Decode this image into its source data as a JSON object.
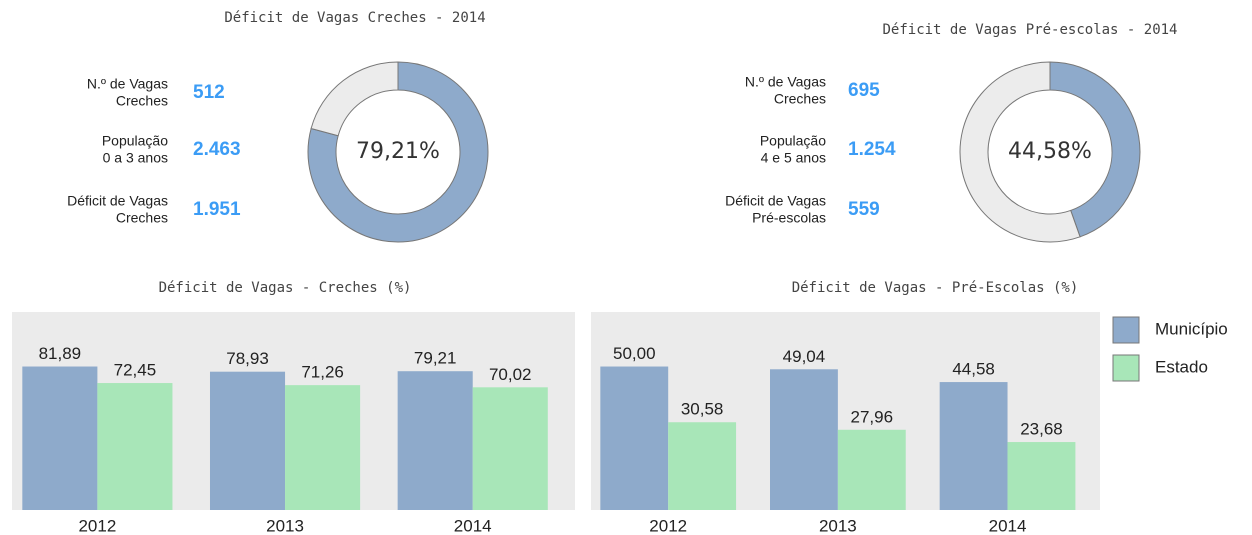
{
  "chart_data": [
    {
      "type": "pie",
      "title": "Déficit de Vagas Creches - 2014",
      "stats": [
        {
          "label": [
            "N.º de Vagas",
            "Creches"
          ],
          "value": 512
        },
        {
          "label": [
            "População",
            "0 a 3 anos"
          ],
          "value": 2463,
          "value_label": "2.463"
        },
        {
          "label": [
            "Déficit de Vagas",
            "Creches"
          ],
          "value": 1951,
          "value_label": "1.951"
        }
      ],
      "values": [
        79.21,
        20.79
      ],
      "colors": [
        "#8eaacb",
        "#ececec"
      ],
      "center_label": "79,21%"
    },
    {
      "type": "pie",
      "title": "Déficit de Vagas Pré-escolas - 2014",
      "stats": [
        {
          "label": [
            "N.º de Vagas",
            "Creches"
          ],
          "value": 695
        },
        {
          "label": [
            "População",
            "4 e 5 anos"
          ],
          "value": 1254,
          "value_label": "1.254"
        },
        {
          "label": [
            "Déficit de Vagas",
            "Pré-escolas"
          ],
          "value": 559
        }
      ],
      "values": [
        44.58,
        55.42
      ],
      "colors": [
        "#8eaacb",
        "#ececec"
      ],
      "center_label": "44,58%"
    },
    {
      "type": "bar",
      "title": "Déficit de Vagas - Creches (%)",
      "categories": [
        "2012",
        "2013",
        "2014"
      ],
      "ylim": [
        0,
        113
      ],
      "series": [
        {
          "color": "#8eaacb",
          "values": [
            81.89,
            78.93,
            79.21
          ],
          "value_labels": [
            "81,89",
            "78,93",
            "79,21"
          ]
        },
        {
          "color": "#a8e6b8",
          "values": [
            72.45,
            71.26,
            70.02
          ],
          "value_labels": [
            "72,45",
            "71,26",
            "70,02"
          ]
        }
      ]
    },
    {
      "type": "bar",
      "title": "Déficit de Vagas - Pré-Escolas (%)",
      "categories": [
        "2012",
        "2013",
        "2014"
      ],
      "ylim": [
        0,
        69
      ],
      "legend": "right",
      "series": [
        {
          "name": "Município",
          "color": "#8eaacb",
          "values": [
            50.0,
            49.04,
            44.58
          ],
          "value_labels": [
            "50,00",
            "49,04",
            "44,58"
          ]
        },
        {
          "name": "Estado",
          "color": "#a8e6b8",
          "values": [
            30.58,
            27.96,
            23.68
          ],
          "value_labels": [
            "30,58",
            "27,96",
            "23,68"
          ]
        }
      ]
    }
  ]
}
